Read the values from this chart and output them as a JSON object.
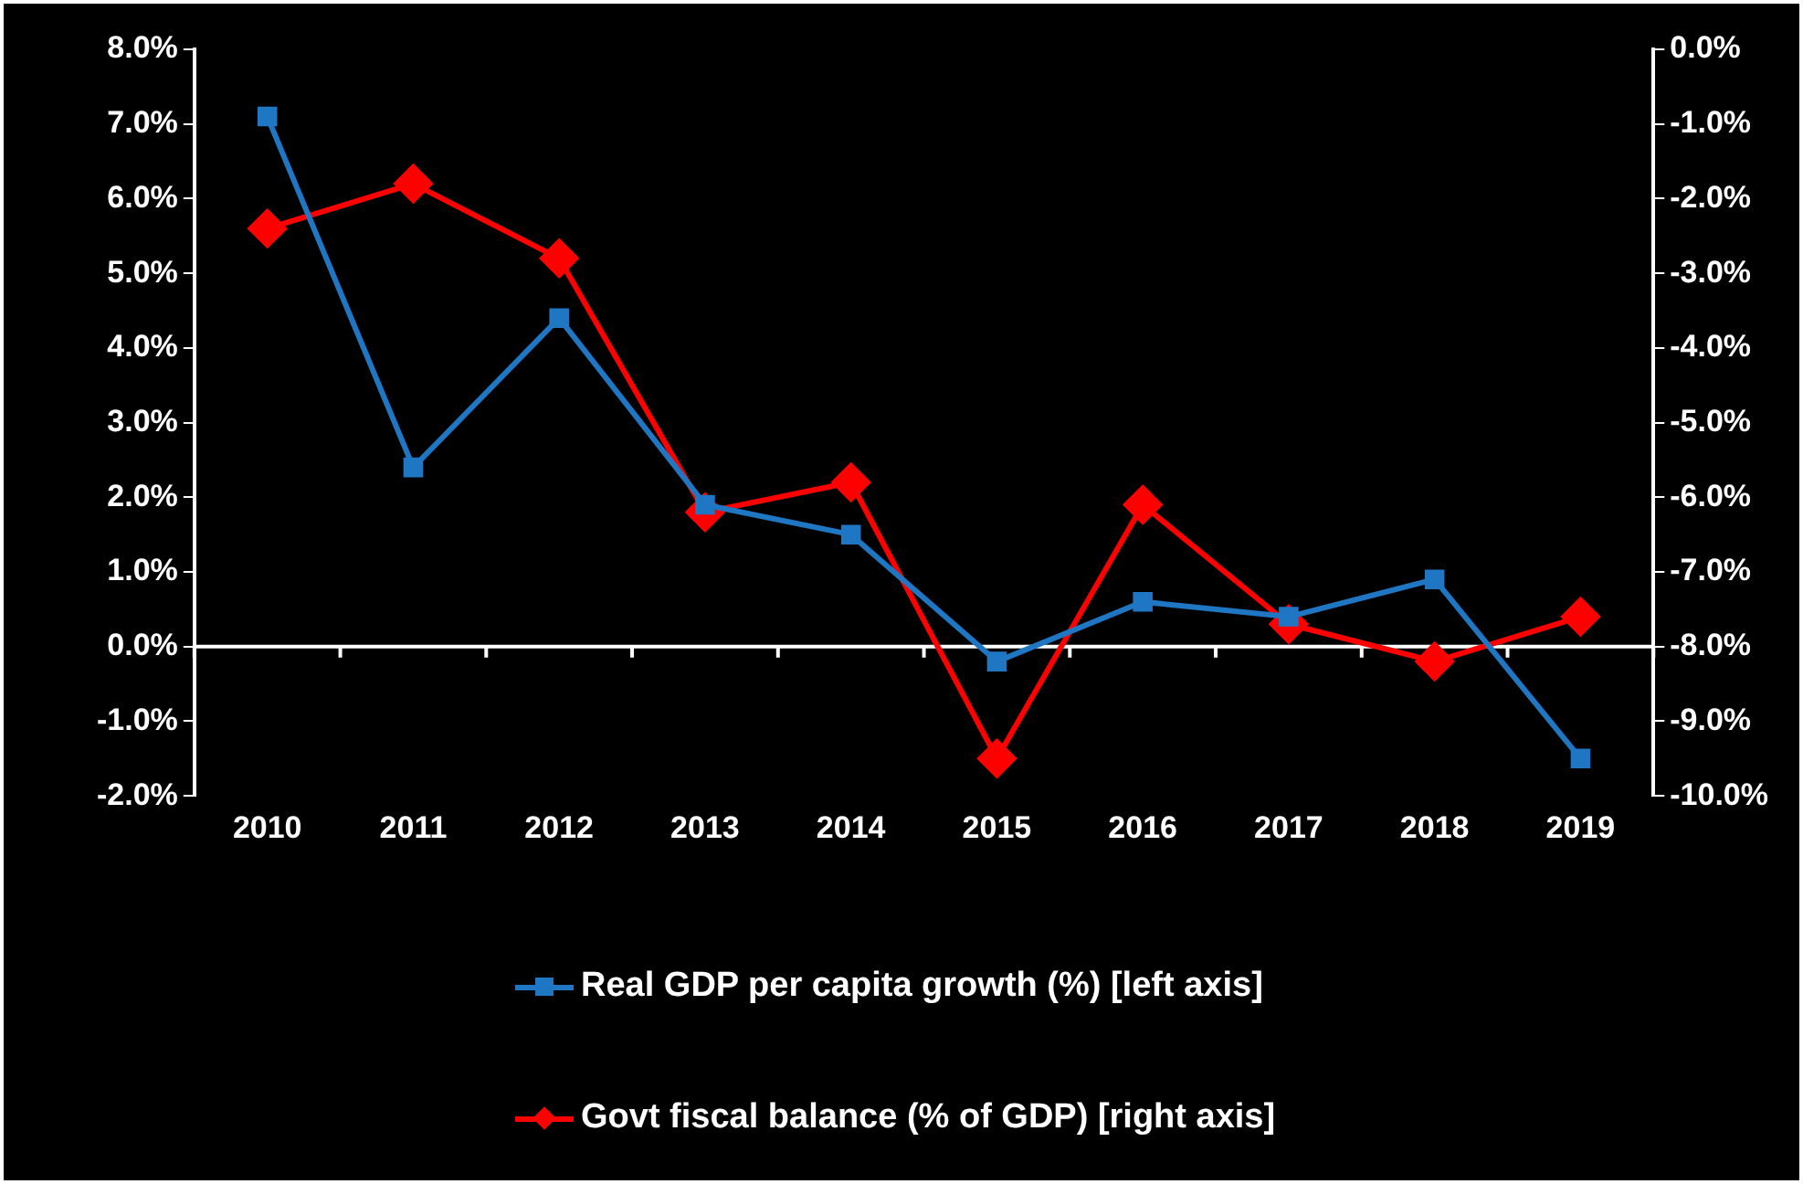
{
  "chart_data": {
    "type": "line",
    "categories": [
      "2010",
      "2011",
      "2012",
      "2013",
      "2014",
      "2015",
      "2016",
      "2017",
      "2018",
      "2019"
    ],
    "series": [
      {
        "name": "Real GDP per capita growth (%) [left axis]",
        "color": "#1f77c4",
        "marker": "square",
        "values": [
          7.1,
          2.4,
          4.4,
          1.9,
          1.5,
          -0.2,
          0.6,
          0.4,
          0.9,
          -1.5
        ]
      },
      {
        "name": "Govt fiscal balance (% of GDP) [right axis]",
        "color": "#ff0000",
        "marker": "diamond",
        "axis": "y2",
        "values": [
          -2.4,
          -1.8,
          -2.8,
          -6.2,
          -5.8,
          -9.5,
          -6.1,
          -7.7,
          -8.2,
          -7.6
        ]
      }
    ],
    "ylim": [
      -2,
      8
    ],
    "yticks": [
      {
        "value": -2,
        "label": "-2.0%"
      },
      {
        "value": -1,
        "label": "-1.0%"
      },
      {
        "value": 0,
        "label": "0.0%"
      },
      {
        "value": 1,
        "label": "1.0%"
      },
      {
        "value": 2,
        "label": "2.0%"
      },
      {
        "value": 3,
        "label": "3.0%"
      },
      {
        "value": 4,
        "label": "4.0%"
      },
      {
        "value": 5,
        "label": "5.0%"
      },
      {
        "value": 6,
        "label": "6.0%"
      },
      {
        "value": 7,
        "label": "7.0%"
      },
      {
        "value": 8,
        "label": "8.0%"
      }
    ],
    "y2lim": [
      -10,
      0
    ],
    "y2ticks": [
      {
        "value": -10,
        "label": "-10.0%"
      },
      {
        "value": -9,
        "label": "-9.0%"
      },
      {
        "value": -8,
        "label": "-8.0%"
      },
      {
        "value": -7,
        "label": "-7.0%"
      },
      {
        "value": -6,
        "label": "-6.0%"
      },
      {
        "value": -5,
        "label": "-5.0%"
      },
      {
        "value": -4,
        "label": "-4.0%"
      },
      {
        "value": -3,
        "label": "-3.0%"
      },
      {
        "value": -2,
        "label": "-2.0%"
      },
      {
        "value": -1,
        "label": "-1.0%"
      },
      {
        "value": 0,
        "label": "0.0%"
      }
    ],
    "ref_lines": [
      {
        "axis": "y",
        "value": 0
      }
    ],
    "grid": false,
    "legend": "bottom",
    "line_style": "solid"
  }
}
